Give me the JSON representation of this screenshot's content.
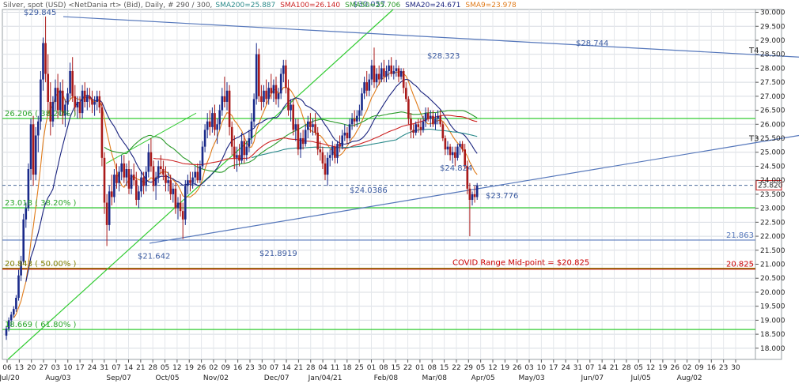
{
  "header": {
    "instrument": "Silver, spot (USD) <NetDania rt> (Bid), Daily, # 290 / 300,",
    "indicators": [
      {
        "label": "SMA200=25.887",
        "color": "#2a8a8a"
      },
      {
        "label": "SMA100=26.140",
        "color": "#cc2222"
      },
      {
        "label": "SMA50=25.706",
        "color": "#2a9a2a"
      },
      {
        "label": "SMA20=24.671",
        "color": "#1a237e"
      },
      {
        "label": "SMA9=23.978",
        "color": "#e07b1a"
      }
    ]
  },
  "chart_data": {
    "type": "candlestick",
    "ylim": [
      17.6,
      30.1
    ],
    "y_ticks": [
      "30.000",
      "29.500",
      "29.000",
      "28.500",
      "28.000",
      "27.500",
      "27.000",
      "26.500",
      "26.000",
      "25.500",
      "25.000",
      "24.500",
      "24.000",
      "23.500",
      "23.000",
      "22.500",
      "22.000",
      "21.500",
      "21.000",
      "20.500",
      "20.000",
      "19.500",
      "19.000",
      "18.500",
      "18.000"
    ],
    "x_day_ticks": [
      "06",
      "13",
      "20",
      "27",
      "03",
      "10",
      "17",
      "24",
      "31",
      "07",
      "14",
      "21",
      "28",
      "05",
      "12",
      "19",
      "26",
      "02",
      "09",
      "16",
      "23",
      "30",
      "07",
      "14",
      "21",
      "28",
      "04",
      "11",
      "18",
      "25",
      "01",
      "08",
      "15",
      "22",
      "01",
      "08",
      "15",
      "22",
      "29",
      "05",
      "12",
      "19",
      "26",
      "03",
      "10",
      "17",
      "24",
      "31",
      "07",
      "14",
      "21",
      "28",
      "05",
      "12",
      "19",
      "26",
      "02",
      "09",
      "16",
      "23",
      "30"
    ],
    "x_month_ticks": [
      "Jul/20",
      "Aug/03",
      "Sep/07",
      "Oct/05",
      "Nov/02",
      "Dec/07",
      "Jan/04/21",
      "Feb/08",
      "Mar/08",
      "Apr/05",
      "May/03",
      "Jun/07",
      "Jul/05",
      "Aug/02"
    ],
    "current_price": "23.820",
    "horizontal_levels": [
      {
        "label": "26.206 ( 38.20% )",
        "value": 26.206,
        "color": "#33cc33"
      },
      {
        "label": "23.018 ( 38.20% )",
        "value": 23.018,
        "color": "#33cc33"
      },
      {
        "label": "21.863",
        "value": 21.863,
        "color": "#5577bb"
      },
      {
        "label": "20.843 ( 50.00% )",
        "value": 20.843,
        "color": "#808000"
      },
      {
        "label": "18.669 ( 61.80% )",
        "value": 18.669,
        "color": "#33cc33"
      }
    ],
    "midpoint": {
      "label": "COVID Range Mid-point = $20.825",
      "axis_label": "20.825",
      "value": 20.825,
      "color": "#cc0000"
    },
    "dashed_level": 23.82,
    "trend_lines": [
      {
        "label": "T4",
        "from": [
          "Aug/03",
          29.845
        ],
        "to": [
          "Aug/02 +",
          28.4
        ]
      },
      {
        "label": "T3",
        "from": [
          "Sep/21",
          21.642
        ],
        "to": [
          "Aug/02 +",
          25.6
        ]
      }
    ],
    "peak_labels": [
      "$29.845",
      "$30.057",
      "$28.323",
      "$28.744",
      "$21.642",
      "$21.8919",
      "$24.0386",
      "$24.824",
      "$23.776"
    ],
    "candles": [
      [
        18.45,
        18.8,
        18.3,
        18.7
      ],
      [
        18.7,
        19.1,
        18.6,
        19.0
      ],
      [
        19.0,
        19.3,
        18.8,
        19.2
      ],
      [
        19.2,
        19.5,
        19.1,
        19.4
      ],
      [
        19.4,
        19.9,
        19.3,
        19.8
      ],
      [
        19.8,
        20.8,
        19.7,
        20.6
      ],
      [
        20.6,
        21.3,
        20.4,
        21.1
      ],
      [
        21.1,
        22.8,
        21.0,
        22.6
      ],
      [
        22.6,
        23.2,
        22.3,
        23.0
      ],
      [
        23.0,
        24.6,
        22.9,
        24.4
      ],
      [
        24.4,
        26.2,
        24.0,
        26.0
      ],
      [
        26.0,
        26.3,
        23.8,
        24.2
      ],
      [
        24.2,
        25.9,
        24.0,
        25.6
      ],
      [
        25.6,
        26.3,
        25.0,
        26.1
      ],
      [
        26.1,
        27.9,
        25.8,
        27.6
      ],
      [
        27.6,
        29.1,
        27.2,
        28.9
      ],
      [
        28.9,
        29.85,
        27.5,
        27.8
      ],
      [
        27.8,
        28.5,
        26.3,
        26.8
      ],
      [
        26.8,
        27.5,
        25.6,
        26.1
      ],
      [
        26.1,
        27.0,
        25.9,
        26.8
      ],
      [
        26.8,
        27.6,
        26.5,
        27.3
      ],
      [
        27.3,
        27.8,
        26.2,
        26.5
      ],
      [
        26.5,
        27.5,
        26.3,
        27.2
      ],
      [
        27.2,
        27.6,
        26.0,
        26.3
      ],
      [
        26.3,
        26.9,
        25.9,
        26.7
      ],
      [
        26.7,
        27.3,
        26.3,
        27.1
      ],
      [
        27.1,
        28.2,
        26.9,
        27.9
      ],
      [
        27.9,
        28.4,
        26.8,
        27.0
      ],
      [
        27.0,
        27.4,
        26.3,
        26.6
      ],
      [
        26.6,
        27.0,
        26.2,
        26.8
      ],
      [
        26.8,
        27.0,
        26.2,
        26.4
      ],
      [
        26.4,
        27.4,
        26.2,
        27.2
      ],
      [
        27.2,
        27.5,
        26.6,
        26.8
      ],
      [
        26.8,
        27.3,
        26.5,
        27.0
      ],
      [
        27.0,
        27.3,
        26.6,
        26.9
      ],
      [
        26.9,
        27.2,
        26.4,
        26.7
      ],
      [
        26.7,
        27.0,
        26.3,
        26.8
      ],
      [
        26.8,
        27.2,
        26.5,
        27.0
      ],
      [
        27.0,
        27.2,
        26.4,
        26.6
      ],
      [
        26.6,
        26.8,
        24.5,
        24.8
      ],
      [
        24.8,
        25.0,
        22.8,
        23.2
      ],
      [
        23.2,
        23.5,
        21.65,
        22.4
      ],
      [
        22.4,
        23.8,
        22.2,
        23.6
      ],
      [
        23.6,
        24.2,
        23.1,
        23.4
      ],
      [
        23.4,
        24.4,
        23.2,
        24.2
      ],
      [
        24.2,
        24.6,
        23.7,
        23.9
      ],
      [
        23.9,
        24.5,
        23.6,
        24.3
      ],
      [
        24.3,
        24.9,
        24.0,
        24.6
      ],
      [
        24.6,
        24.9,
        23.9,
        24.1
      ],
      [
        24.1,
        24.6,
        23.8,
        24.4
      ],
      [
        24.4,
        24.7,
        23.5,
        23.7
      ],
      [
        23.7,
        24.4,
        23.5,
        24.2
      ],
      [
        24.2,
        24.6,
        23.8,
        24.0
      ],
      [
        24.0,
        24.3,
        23.1,
        23.3
      ],
      [
        23.3,
        23.8,
        23.0,
        23.6
      ],
      [
        23.6,
        24.3,
        23.4,
        24.1
      ],
      [
        24.1,
        24.3,
        23.5,
        23.8
      ],
      [
        23.8,
        24.5,
        23.6,
        24.3
      ],
      [
        24.3,
        25.3,
        24.1,
        25.0
      ],
      [
        25.0,
        25.5,
        24.3,
        24.5
      ],
      [
        24.5,
        24.7,
        23.6,
        23.8
      ],
      [
        23.8,
        24.3,
        23.3,
        24.1
      ],
      [
        24.1,
        24.7,
        23.9,
        24.5
      ],
      [
        24.5,
        24.9,
        24.2,
        24.4
      ],
      [
        24.4,
        24.7,
        24.0,
        24.2
      ],
      [
        24.2,
        24.5,
        23.6,
        23.9
      ],
      [
        23.9,
        24.3,
        23.6,
        24.0
      ],
      [
        24.0,
        24.2,
        23.3,
        23.5
      ],
      [
        23.5,
        23.9,
        23.2,
        23.7
      ],
      [
        23.7,
        23.9,
        22.8,
        23.0
      ],
      [
        23.0,
        23.4,
        22.6,
        23.2
      ],
      [
        23.2,
        23.5,
        22.7,
        22.9
      ],
      [
        22.9,
        23.2,
        21.9,
        22.6
      ],
      [
        22.6,
        24.0,
        22.4,
        23.8
      ],
      [
        23.8,
        24.2,
        23.5,
        24.0
      ],
      [
        24.0,
        24.3,
        23.6,
        23.9
      ],
      [
        23.9,
        24.3,
        23.7,
        24.1
      ],
      [
        24.1,
        24.5,
        23.8,
        24.3
      ],
      [
        24.3,
        24.6,
        23.9,
        24.0
      ],
      [
        24.0,
        24.7,
        23.9,
        24.5
      ],
      [
        24.5,
        25.4,
        24.4,
        25.2
      ],
      [
        25.2,
        26.0,
        25.0,
        25.8
      ],
      [
        25.8,
        26.4,
        25.5,
        26.1
      ],
      [
        26.1,
        26.5,
        25.6,
        25.9
      ],
      [
        25.9,
        26.6,
        25.7,
        26.4
      ],
      [
        26.4,
        26.7,
        25.6,
        25.8
      ],
      [
        25.8,
        26.2,
        25.3,
        26.0
      ],
      [
        26.0,
        26.7,
        25.8,
        26.5
      ],
      [
        26.5,
        27.3,
        26.3,
        27.0
      ],
      [
        27.0,
        27.7,
        26.6,
        26.8
      ],
      [
        26.8,
        27.5,
        26.5,
        27.2
      ],
      [
        27.2,
        27.4,
        25.6,
        25.9
      ],
      [
        25.9,
        26.1,
        24.9,
        25.2
      ],
      [
        25.2,
        25.6,
        24.4,
        24.8
      ],
      [
        24.8,
        25.2,
        24.3,
        24.9
      ],
      [
        24.9,
        25.3,
        24.5,
        24.7
      ],
      [
        24.7,
        25.7,
        24.6,
        25.4
      ],
      [
        25.4,
        25.6,
        24.6,
        24.9
      ],
      [
        24.9,
        25.4,
        24.7,
        25.2
      ],
      [
        25.2,
        25.8,
        25.0,
        25.5
      ],
      [
        25.5,
        26.4,
        25.3,
        26.1
      ],
      [
        26.1,
        27.1,
        25.9,
        26.9
      ],
      [
        26.9,
        28.9,
        26.7,
        28.5
      ],
      [
        28.5,
        28.7,
        26.8,
        27.0
      ],
      [
        27.0,
        27.4,
        26.5,
        26.8
      ],
      [
        26.8,
        27.4,
        26.6,
        27.2
      ],
      [
        27.2,
        27.6,
        26.7,
        26.9
      ],
      [
        26.9,
        27.5,
        26.7,
        27.3
      ],
      [
        27.3,
        27.8,
        26.9,
        27.1
      ],
      [
        27.1,
        27.6,
        26.8,
        27.4
      ],
      [
        27.4,
        27.7,
        26.7,
        26.9
      ],
      [
        26.9,
        27.3,
        26.6,
        27.1
      ],
      [
        27.1,
        28.0,
        26.9,
        27.8
      ],
      [
        27.8,
        28.3,
        27.5,
        28.1
      ],
      [
        28.1,
        28.3,
        27.1,
        27.3
      ],
      [
        27.3,
        27.6,
        26.3,
        26.5
      ],
      [
        26.5,
        26.9,
        26.1,
        26.7
      ],
      [
        26.7,
        26.9,
        25.6,
        25.8
      ],
      [
        25.8,
        26.2,
        25.4,
        26.0
      ],
      [
        26.0,
        26.2,
        24.9,
        25.1
      ],
      [
        25.1,
        25.7,
        24.8,
        25.5
      ],
      [
        25.5,
        25.8,
        25.1,
        25.3
      ],
      [
        25.3,
        26.0,
        25.2,
        25.8
      ],
      [
        25.8,
        26.3,
        25.5,
        26.1
      ],
      [
        26.1,
        26.4,
        25.7,
        25.9
      ],
      [
        25.9,
        26.2,
        25.6,
        26.0
      ],
      [
        26.0,
        26.4,
        25.6,
        25.7
      ],
      [
        25.7,
        25.9,
        24.9,
        25.1
      ],
      [
        25.1,
        25.4,
        24.7,
        25.0
      ],
      [
        25.0,
        25.2,
        24.4,
        24.6
      ],
      [
        24.6,
        24.9,
        24.0,
        24.2
      ],
      [
        24.2,
        25.0,
        23.8,
        24.8
      ],
      [
        24.8,
        25.1,
        24.5,
        24.9
      ],
      [
        24.9,
        25.4,
        24.7,
        25.2
      ],
      [
        25.2,
        25.3,
        24.6,
        24.8
      ],
      [
        24.8,
        25.4,
        24.6,
        25.3
      ],
      [
        25.3,
        25.6,
        25.0,
        25.2
      ],
      [
        25.2,
        25.8,
        25.1,
        25.6
      ],
      [
        25.6,
        26.0,
        25.4,
        25.7
      ],
      [
        25.7,
        25.9,
        25.3,
        25.5
      ],
      [
        25.5,
        26.2,
        25.4,
        26.0
      ],
      [
        26.0,
        26.4,
        25.8,
        26.2
      ],
      [
        26.2,
        26.5,
        25.9,
        26.1
      ],
      [
        26.1,
        26.5,
        25.9,
        26.3
      ],
      [
        26.3,
        26.7,
        26.1,
        26.5
      ],
      [
        26.5,
        27.3,
        26.3,
        27.1
      ],
      [
        27.1,
        27.7,
        26.9,
        27.5
      ],
      [
        27.5,
        27.9,
        27.0,
        27.2
      ],
      [
        27.2,
        27.8,
        27.0,
        27.6
      ],
      [
        27.6,
        28.3,
        27.4,
        28.1
      ],
      [
        28.1,
        28.74,
        27.3,
        27.5
      ],
      [
        27.5,
        28.0,
        27.3,
        27.8
      ],
      [
        27.8,
        28.1,
        27.4,
        27.6
      ],
      [
        27.6,
        28.2,
        27.5,
        28.0
      ],
      [
        28.0,
        28.3,
        27.5,
        27.7
      ],
      [
        27.7,
        28.1,
        27.5,
        27.9
      ],
      [
        27.9,
        28.3,
        27.6,
        28.1
      ],
      [
        28.1,
        28.4,
        27.7,
        27.8
      ],
      [
        27.8,
        28.1,
        27.6,
        27.9
      ],
      [
        27.9,
        28.3,
        27.7,
        28.0
      ],
      [
        28.0,
        28.1,
        27.5,
        27.7
      ],
      [
        27.7,
        28.0,
        27.6,
        27.9
      ],
      [
        27.9,
        28.0,
        27.1,
        27.3
      ],
      [
        27.3,
        27.5,
        26.8,
        26.9
      ],
      [
        26.9,
        27.0,
        26.0,
        26.2
      ],
      [
        26.2,
        26.4,
        25.5,
        25.8
      ],
      [
        25.8,
        26.0,
        25.5,
        25.7
      ],
      [
        25.7,
        26.1,
        25.6,
        26.0
      ],
      [
        26.0,
        26.2,
        25.7,
        25.9
      ],
      [
        25.9,
        26.2,
        25.6,
        25.8
      ],
      [
        25.8,
        26.3,
        25.7,
        26.1
      ],
      [
        26.1,
        26.6,
        25.9,
        26.4
      ],
      [
        26.4,
        26.6,
        26.1,
        26.2
      ],
      [
        26.2,
        26.5,
        25.9,
        26.3
      ],
      [
        26.3,
        26.5,
        25.9,
        26.0
      ],
      [
        26.0,
        26.4,
        25.8,
        26.2
      ],
      [
        26.2,
        26.5,
        26.0,
        26.3
      ],
      [
        26.3,
        26.5,
        25.9,
        26.0
      ],
      [
        26.0,
        26.1,
        25.4,
        25.5
      ],
      [
        25.5,
        25.6,
        24.9,
        25.1
      ],
      [
        25.1,
        25.4,
        24.9,
        25.2
      ],
      [
        25.2,
        25.3,
        24.7,
        24.9
      ],
      [
        24.9,
        25.2,
        24.6,
        25.0
      ],
      [
        25.0,
        25.2,
        24.5,
        24.8
      ],
      [
        24.8,
        25.3,
        24.7,
        25.2
      ],
      [
        25.2,
        25.4,
        24.9,
        25.3
      ],
      [
        25.3,
        25.4,
        25.0,
        25.1
      ],
      [
        25.1,
        25.3,
        24.4,
        24.5
      ],
      [
        24.5,
        24.7,
        23.5,
        23.7
      ],
      [
        23.7,
        23.9,
        22.0,
        23.3
      ],
      [
        23.3,
        23.6,
        23.1,
        23.5
      ],
      [
        23.5,
        23.8,
        23.2,
        23.4
      ],
      [
        23.4,
        23.9,
        23.3,
        23.82
      ]
    ]
  }
}
